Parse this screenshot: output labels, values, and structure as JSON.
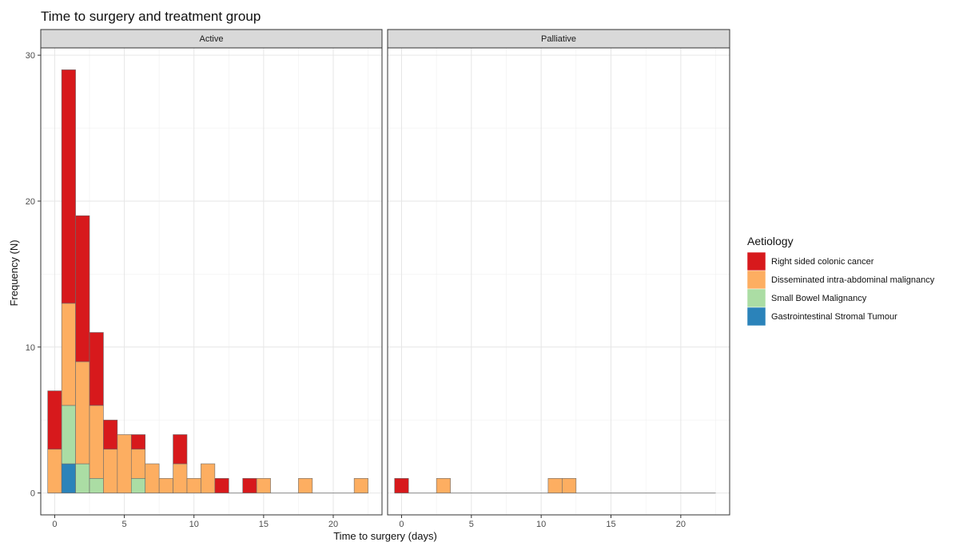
{
  "chart_data": {
    "type": "bar",
    "stacked": true,
    "title": "Time to surgery and treatment group",
    "xlabel": "Time to surgery (days)",
    "ylabel": "Frequency (N)",
    "xlim": [
      -1,
      23.5
    ],
    "ylim": [
      -1.5,
      30.5
    ],
    "x_ticks": [
      0,
      5,
      10,
      15,
      20
    ],
    "y_ticks": [
      0,
      10,
      20,
      30
    ],
    "grid": true,
    "legend": {
      "title": "Aetiology",
      "position": "right",
      "entries": [
        {
          "name": "Right sided colonic cancer",
          "color": "#d7191c"
        },
        {
          "name": "Disseminated intra-abdominal malignancy",
          "color": "#fdae61"
        },
        {
          "name": "Small Bowel Malignancy",
          "color": "#abdda4"
        },
        {
          "name": "Gastrointestinal Stromal Tumour",
          "color": "#2b83ba"
        }
      ]
    },
    "series_order_bottom_to_top": [
      "Gastrointestinal Stromal Tumour",
      "Small Bowel Malignancy",
      "Disseminated intra-abdominal malignancy",
      "Right sided colonic cancer"
    ],
    "panels": [
      {
        "label": "Active",
        "bins": [
          {
            "x": 0,
            "values": {
              "Right sided colonic cancer": 4,
              "Disseminated intra-abdominal malignancy": 3,
              "Small Bowel Malignancy": 0,
              "Gastrointestinal Stromal Tumour": 0
            }
          },
          {
            "x": 1,
            "values": {
              "Right sided colonic cancer": 16,
              "Disseminated intra-abdominal malignancy": 7,
              "Small Bowel Malignancy": 4,
              "Gastrointestinal Stromal Tumour": 2
            }
          },
          {
            "x": 2,
            "values": {
              "Right sided colonic cancer": 10,
              "Disseminated intra-abdominal malignancy": 7,
              "Small Bowel Malignancy": 2,
              "Gastrointestinal Stromal Tumour": 0
            }
          },
          {
            "x": 3,
            "values": {
              "Right sided colonic cancer": 5,
              "Disseminated intra-abdominal malignancy": 5,
              "Small Bowel Malignancy": 1,
              "Gastrointestinal Stromal Tumour": 0
            }
          },
          {
            "x": 4,
            "values": {
              "Right sided colonic cancer": 2,
              "Disseminated intra-abdominal malignancy": 3,
              "Small Bowel Malignancy": 0,
              "Gastrointestinal Stromal Tumour": 0
            }
          },
          {
            "x": 5,
            "values": {
              "Right sided colonic cancer": 0,
              "Disseminated intra-abdominal malignancy": 4,
              "Small Bowel Malignancy": 0,
              "Gastrointestinal Stromal Tumour": 0
            }
          },
          {
            "x": 6,
            "values": {
              "Right sided colonic cancer": 1,
              "Disseminated intra-abdominal malignancy": 2,
              "Small Bowel Malignancy": 1,
              "Gastrointestinal Stromal Tumour": 0
            }
          },
          {
            "x": 7,
            "values": {
              "Right sided colonic cancer": 0,
              "Disseminated intra-abdominal malignancy": 2,
              "Small Bowel Malignancy": 0,
              "Gastrointestinal Stromal Tumour": 0
            }
          },
          {
            "x": 8,
            "values": {
              "Right sided colonic cancer": 0,
              "Disseminated intra-abdominal malignancy": 1,
              "Small Bowel Malignancy": 0,
              "Gastrointestinal Stromal Tumour": 0
            }
          },
          {
            "x": 9,
            "values": {
              "Right sided colonic cancer": 2,
              "Disseminated intra-abdominal malignancy": 2,
              "Small Bowel Malignancy": 0,
              "Gastrointestinal Stromal Tumour": 0
            }
          },
          {
            "x": 10,
            "values": {
              "Right sided colonic cancer": 0,
              "Disseminated intra-abdominal malignancy": 1,
              "Small Bowel Malignancy": 0,
              "Gastrointestinal Stromal Tumour": 0
            }
          },
          {
            "x": 11,
            "values": {
              "Right sided colonic cancer": 0,
              "Disseminated intra-abdominal malignancy": 2,
              "Small Bowel Malignancy": 0,
              "Gastrointestinal Stromal Tumour": 0
            }
          },
          {
            "x": 12,
            "values": {
              "Right sided colonic cancer": 1,
              "Disseminated intra-abdominal malignancy": 0,
              "Small Bowel Malignancy": 0,
              "Gastrointestinal Stromal Tumour": 0
            }
          },
          {
            "x": 13,
            "values": {
              "Right sided colonic cancer": 0,
              "Disseminated intra-abdominal malignancy": 0,
              "Small Bowel Malignancy": 0,
              "Gastrointestinal Stromal Tumour": 0
            }
          },
          {
            "x": 14,
            "values": {
              "Right sided colonic cancer": 1,
              "Disseminated intra-abdominal malignancy": 0,
              "Small Bowel Malignancy": 0,
              "Gastrointestinal Stromal Tumour": 0
            }
          },
          {
            "x": 15,
            "values": {
              "Right sided colonic cancer": 0,
              "Disseminated intra-abdominal malignancy": 1,
              "Small Bowel Malignancy": 0,
              "Gastrointestinal Stromal Tumour": 0
            }
          },
          {
            "x": 16,
            "values": {
              "Right sided colonic cancer": 0,
              "Disseminated intra-abdominal malignancy": 0,
              "Small Bowel Malignancy": 0,
              "Gastrointestinal Stromal Tumour": 0
            }
          },
          {
            "x": 17,
            "values": {
              "Right sided colonic cancer": 0,
              "Disseminated intra-abdominal malignancy": 0,
              "Small Bowel Malignancy": 0,
              "Gastrointestinal Stromal Tumour": 0
            }
          },
          {
            "x": 18,
            "values": {
              "Right sided colonic cancer": 0,
              "Disseminated intra-abdominal malignancy": 1,
              "Small Bowel Malignancy": 0,
              "Gastrointestinal Stromal Tumour": 0
            }
          },
          {
            "x": 19,
            "values": {
              "Right sided colonic cancer": 0,
              "Disseminated intra-abdominal malignancy": 0,
              "Small Bowel Malignancy": 0,
              "Gastrointestinal Stromal Tumour": 0
            }
          },
          {
            "x": 20,
            "values": {
              "Right sided colonic cancer": 0,
              "Disseminated intra-abdominal malignancy": 0,
              "Small Bowel Malignancy": 0,
              "Gastrointestinal Stromal Tumour": 0
            }
          },
          {
            "x": 21,
            "values": {
              "Right sided colonic cancer": 0,
              "Disseminated intra-abdominal malignancy": 0,
              "Small Bowel Malignancy": 0,
              "Gastrointestinal Stromal Tumour": 0
            }
          },
          {
            "x": 22,
            "values": {
              "Right sided colonic cancer": 0,
              "Disseminated intra-abdominal malignancy": 1,
              "Small Bowel Malignancy": 0,
              "Gastrointestinal Stromal Tumour": 0
            }
          }
        ]
      },
      {
        "label": "Palliative",
        "bins": [
          {
            "x": 0,
            "values": {
              "Right sided colonic cancer": 1,
              "Disseminated intra-abdominal malignancy": 0,
              "Small Bowel Malignancy": 0,
              "Gastrointestinal Stromal Tumour": 0
            }
          },
          {
            "x": 1,
            "values": {
              "Right sided colonic cancer": 0,
              "Disseminated intra-abdominal malignancy": 0,
              "Small Bowel Malignancy": 0,
              "Gastrointestinal Stromal Tumour": 0
            }
          },
          {
            "x": 2,
            "values": {
              "Right sided colonic cancer": 0,
              "Disseminated intra-abdominal malignancy": 0,
              "Small Bowel Malignancy": 0,
              "Gastrointestinal Stromal Tumour": 0
            }
          },
          {
            "x": 3,
            "values": {
              "Right sided colonic cancer": 0,
              "Disseminated intra-abdominal malignancy": 1,
              "Small Bowel Malignancy": 0,
              "Gastrointestinal Stromal Tumour": 0
            }
          },
          {
            "x": 4,
            "values": {
              "Right sided colonic cancer": 0,
              "Disseminated intra-abdominal malignancy": 0,
              "Small Bowel Malignancy": 0,
              "Gastrointestinal Stromal Tumour": 0
            }
          },
          {
            "x": 5,
            "values": {
              "Right sided colonic cancer": 0,
              "Disseminated intra-abdominal malignancy": 0,
              "Small Bowel Malignancy": 0,
              "Gastrointestinal Stromal Tumour": 0
            }
          },
          {
            "x": 6,
            "values": {
              "Right sided colonic cancer": 0,
              "Disseminated intra-abdominal malignancy": 0,
              "Small Bowel Malignancy": 0,
              "Gastrointestinal Stromal Tumour": 0
            }
          },
          {
            "x": 7,
            "values": {
              "Right sided colonic cancer": 0,
              "Disseminated intra-abdominal malignancy": 0,
              "Small Bowel Malignancy": 0,
              "Gastrointestinal Stromal Tumour": 0
            }
          },
          {
            "x": 8,
            "values": {
              "Right sided colonic cancer": 0,
              "Disseminated intra-abdominal malignancy": 0,
              "Small Bowel Malignancy": 0,
              "Gastrointestinal Stromal Tumour": 0
            }
          },
          {
            "x": 9,
            "values": {
              "Right sided colonic cancer": 0,
              "Disseminated intra-abdominal malignancy": 0,
              "Small Bowel Malignancy": 0,
              "Gastrointestinal Stromal Tumour": 0
            }
          },
          {
            "x": 10,
            "values": {
              "Right sided colonic cancer": 0,
              "Disseminated intra-abdominal malignancy": 0,
              "Small Bowel Malignancy": 0,
              "Gastrointestinal Stromal Tumour": 0
            }
          },
          {
            "x": 11,
            "values": {
              "Right sided colonic cancer": 0,
              "Disseminated intra-abdominal malignancy": 1,
              "Small Bowel Malignancy": 0,
              "Gastrointestinal Stromal Tumour": 0
            }
          },
          {
            "x": 12,
            "values": {
              "Right sided colonic cancer": 0,
              "Disseminated intra-abdominal malignancy": 1,
              "Small Bowel Malignancy": 0,
              "Gastrointestinal Stromal Tumour": 0
            }
          },
          {
            "x": 13,
            "values": {
              "Right sided colonic cancer": 0,
              "Disseminated intra-abdominal malignancy": 0,
              "Small Bowel Malignancy": 0,
              "Gastrointestinal Stromal Tumour": 0
            }
          },
          {
            "x": 14,
            "values": {
              "Right sided colonic cancer": 0,
              "Disseminated intra-abdominal malignancy": 0,
              "Small Bowel Malignancy": 0,
              "Gastrointestinal Stromal Tumour": 0
            }
          },
          {
            "x": 15,
            "values": {
              "Right sided colonic cancer": 0,
              "Disseminated intra-abdominal malignancy": 0,
              "Small Bowel Malignancy": 0,
              "Gastrointestinal Stromal Tumour": 0
            }
          },
          {
            "x": 16,
            "values": {
              "Right sided colonic cancer": 0,
              "Disseminated intra-abdominal malignancy": 0,
              "Small Bowel Malignancy": 0,
              "Gastrointestinal Stromal Tumour": 0
            }
          },
          {
            "x": 17,
            "values": {
              "Right sided colonic cancer": 0,
              "Disseminated intra-abdominal malignancy": 0,
              "Small Bowel Malignancy": 0,
              "Gastrointestinal Stromal Tumour": 0
            }
          },
          {
            "x": 18,
            "values": {
              "Right sided colonic cancer": 0,
              "Disseminated intra-abdominal malignancy": 0,
              "Small Bowel Malignancy": 0,
              "Gastrointestinal Stromal Tumour": 0
            }
          },
          {
            "x": 19,
            "values": {
              "Right sided colonic cancer": 0,
              "Disseminated intra-abdominal malignancy": 0,
              "Small Bowel Malignancy": 0,
              "Gastrointestinal Stromal Tumour": 0
            }
          },
          {
            "x": 20,
            "values": {
              "Right sided colonic cancer": 0,
              "Disseminated intra-abdominal malignancy": 0,
              "Small Bowel Malignancy": 0,
              "Gastrointestinal Stromal Tumour": 0
            }
          },
          {
            "x": 21,
            "values": {
              "Right sided colonic cancer": 0,
              "Disseminated intra-abdominal malignancy": 0,
              "Small Bowel Malignancy": 0,
              "Gastrointestinal Stromal Tumour": 0
            }
          },
          {
            "x": 22,
            "values": {
              "Right sided colonic cancer": 0,
              "Disseminated intra-abdominal malignancy": 0,
              "Small Bowel Malignancy": 0,
              "Gastrointestinal Stromal Tumour": 0
            }
          }
        ]
      }
    ]
  }
}
